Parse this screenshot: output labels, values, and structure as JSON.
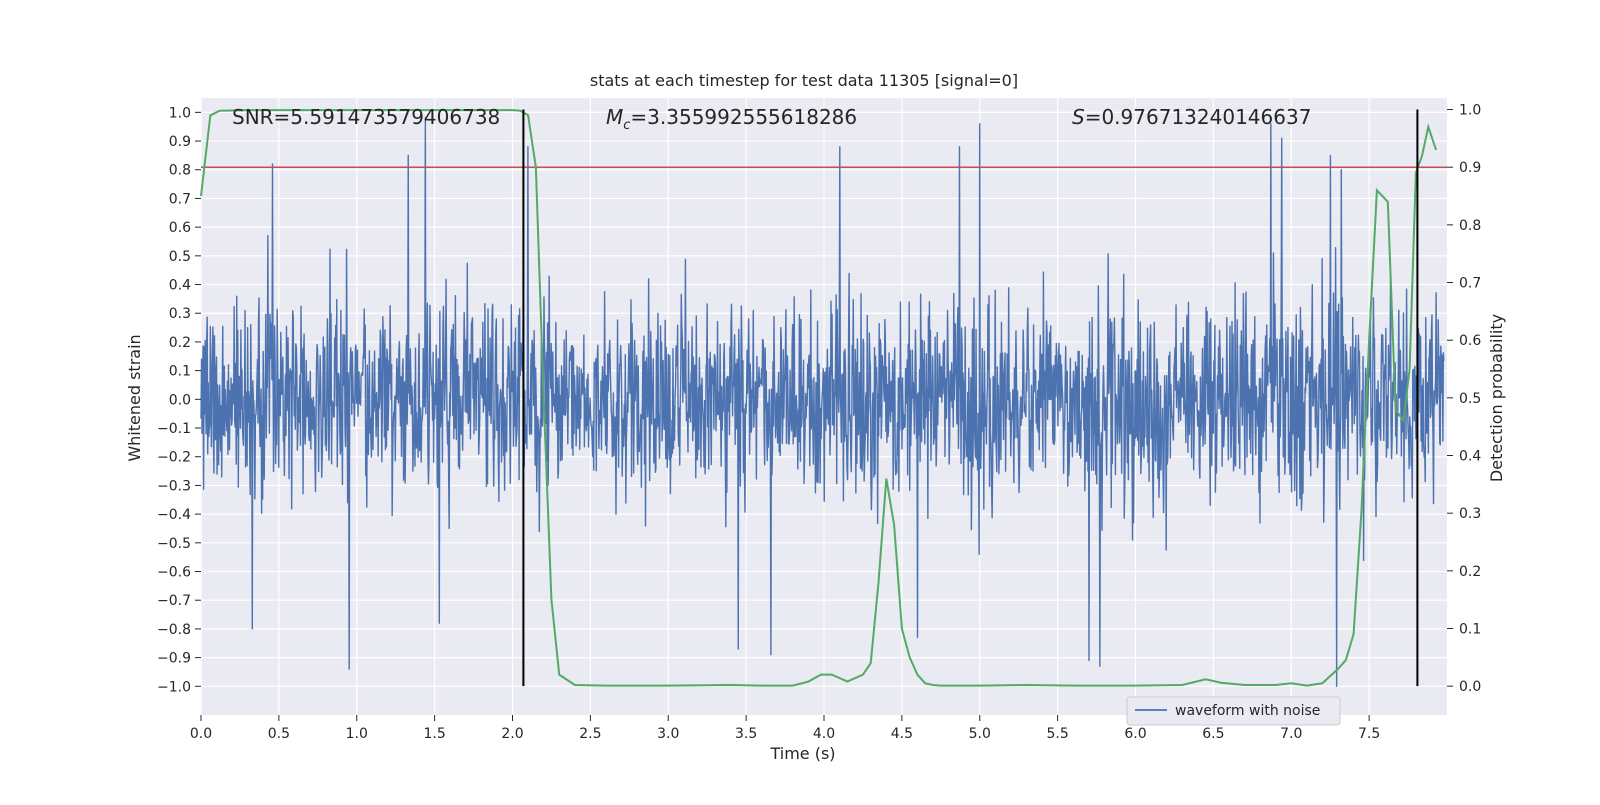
{
  "chart_data": {
    "type": "line",
    "title": "stats at each timestep for test data 11305 [signal=0]",
    "xlabel": "Time (s)",
    "ylabel_left": "Whitened strain",
    "ylabel_right": "Detection probability",
    "xlim": [
      0.0,
      8.0
    ],
    "ylim_left": [
      -1.1,
      1.05
    ],
    "ylim_right": [
      -0.05,
      1.02
    ],
    "x_ticks": [
      0.0,
      0.5,
      1.0,
      1.5,
      2.0,
      2.5,
      3.0,
      3.5,
      4.0,
      4.5,
      5.0,
      5.5,
      6.0,
      6.5,
      7.0,
      7.5
    ],
    "x_tick_labels": [
      "0.0",
      "0.5",
      "1.0",
      "1.5",
      "2.0",
      "2.5",
      "3.0",
      "3.5",
      "4.0",
      "4.5",
      "5.0",
      "5.5",
      "6.0",
      "6.5",
      "7.0",
      "7.5"
    ],
    "y_left_ticks": [
      1.0,
      0.9,
      0.8,
      0.7,
      0.6,
      0.5,
      0.4,
      0.3,
      0.2,
      0.1,
      0.0,
      -0.1,
      -0.2,
      -0.3,
      -0.4,
      -0.5,
      -0.6,
      -0.7,
      -0.8,
      -0.9,
      -1.0
    ],
    "y_left_tick_labels": [
      "1.0",
      "0.9",
      "0.8",
      "0.7",
      "0.6",
      "0.5",
      "0.4",
      "0.3",
      "0.2",
      "0.1",
      "0.0",
      "−0.1",
      "−0.2",
      "−0.3",
      "−0.4",
      "−0.5",
      "−0.6",
      "−0.7",
      "−0.8",
      "−0.9",
      "−1.0"
    ],
    "y_right_ticks": [
      1.0,
      0.9,
      0.8,
      0.7,
      0.6,
      0.5,
      0.4,
      0.3,
      0.2,
      0.1,
      0.0
    ],
    "y_right_tick_labels": [
      "1.0",
      "0.9",
      "0.8",
      "0.7",
      "0.6",
      "0.5",
      "0.4",
      "0.3",
      "0.2",
      "0.1",
      "0.0"
    ],
    "grid": true,
    "background": "#eaeaf2",
    "annotations": {
      "snr": "SNR=5.591473579406738",
      "mc_symbol": "M",
      "mc_sub": "c",
      "mc_value": "=3.355992555618286",
      "s_symbol": "S",
      "s_value": "=0.976713240146637"
    },
    "threshold": {
      "value_right_axis": 0.9,
      "color": "#c44e52"
    },
    "vertical_lines": [
      2.07,
      7.81
    ],
    "waveform": {
      "name": "waveform with noise",
      "color": "#4c72b0",
      "noise_std": 0.17,
      "seed": 11305,
      "spikes": [
        {
          "t": 0.33,
          "v": -0.8
        },
        {
          "t": 0.46,
          "v": 0.82
        },
        {
          "t": 0.95,
          "v": -0.94
        },
        {
          "t": 1.33,
          "v": 0.85
        },
        {
          "t": 1.44,
          "v": 0.98
        },
        {
          "t": 1.53,
          "v": -0.78
        },
        {
          "t": 2.1,
          "v": 0.88
        },
        {
          "t": 3.45,
          "v": -0.87
        },
        {
          "t": 3.66,
          "v": -0.89
        },
        {
          "t": 4.1,
          "v": 0.88
        },
        {
          "t": 4.6,
          "v": -0.83
        },
        {
          "t": 4.87,
          "v": 0.88
        },
        {
          "t": 5.0,
          "v": 0.96
        },
        {
          "t": 5.7,
          "v": -0.91
        },
        {
          "t": 5.77,
          "v": -0.93
        },
        {
          "t": 6.87,
          "v": 0.96
        },
        {
          "t": 6.94,
          "v": 0.91
        },
        {
          "t": 7.25,
          "v": 0.85
        },
        {
          "t": 7.29,
          "v": -1.0
        },
        {
          "t": 7.32,
          "v": 0.8
        }
      ]
    },
    "probability": {
      "color": "#55a868",
      "t": [
        0.0,
        0.06,
        0.12,
        0.3,
        0.6,
        1.0,
        1.5,
        1.95,
        2.0,
        2.05,
        2.1,
        2.15,
        2.2,
        2.25,
        2.3,
        2.4,
        2.6,
        3.0,
        3.4,
        3.6,
        3.8,
        3.9,
        3.98,
        4.05,
        4.15,
        4.25,
        4.3,
        4.35,
        4.4,
        4.45,
        4.5,
        4.55,
        4.6,
        4.65,
        4.7,
        4.75,
        4.8,
        5.0,
        5.3,
        5.6,
        6.0,
        6.3,
        6.45,
        6.55,
        6.7,
        6.9,
        7.0,
        7.1,
        7.2,
        7.3,
        7.35,
        7.4,
        7.45,
        7.5,
        7.55,
        7.62,
        7.67,
        7.72,
        7.76,
        7.8,
        7.84,
        7.88,
        7.93
      ],
      "p": [
        0.85,
        0.99,
        0.998,
        0.999,
        0.999,
        0.999,
        0.999,
        0.999,
        0.999,
        0.998,
        0.99,
        0.9,
        0.5,
        0.15,
        0.02,
        0.002,
        0.001,
        0.001,
        0.002,
        0.001,
        0.001,
        0.008,
        0.02,
        0.02,
        0.008,
        0.02,
        0.04,
        0.18,
        0.36,
        0.28,
        0.1,
        0.05,
        0.02,
        0.005,
        0.002,
        0.001,
        0.001,
        0.001,
        0.002,
        0.001,
        0.001,
        0.002,
        0.012,
        0.006,
        0.002,
        0.002,
        0.005,
        0.001,
        0.005,
        0.03,
        0.045,
        0.09,
        0.3,
        0.6,
        0.86,
        0.84,
        0.48,
        0.46,
        0.55,
        0.89,
        0.92,
        0.97,
        0.93
      ]
    },
    "legend": {
      "placement": "lower-right",
      "label": "waveform with noise"
    }
  }
}
